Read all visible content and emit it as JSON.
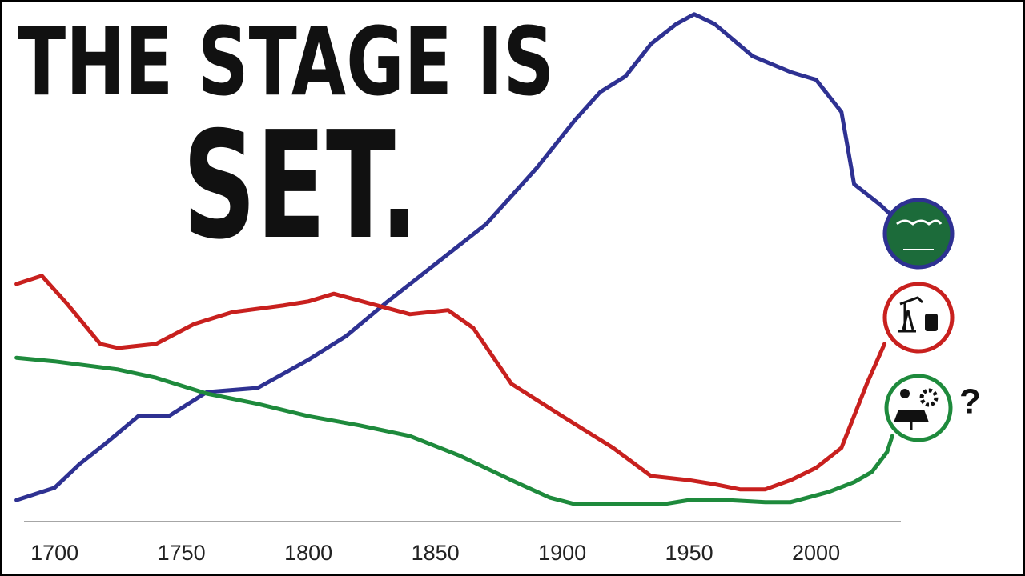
{
  "chart_data": {
    "type": "line",
    "title": [
      "THE STAGE IS",
      "SET."
    ],
    "annotation": "?",
    "xlim": [
      1685,
      2035
    ],
    "xticks": [
      1700,
      1750,
      1800,
      1850,
      1900,
      1950,
      2000
    ],
    "ylim": [
      0,
      100
    ],
    "series": [
      {
        "color": "#2e3192",
        "x": [
          1685,
          1700,
          1710,
          1720,
          1733,
          1745,
          1760,
          1780,
          1800,
          1815,
          1830,
          1850,
          1870,
          1890,
          1905,
          1915,
          1925,
          1935,
          1945,
          1952,
          1960,
          1975,
          1990,
          2000,
          2010,
          2015,
          2025,
          2030
        ],
        "values": [
          4.2,
          6.6,
          11.3,
          15.2,
          20.6,
          20.6,
          25.3,
          26.1,
          31.6,
          36.3,
          42.5,
          50.3,
          58.1,
          69.1,
          78.4,
          83.9,
          87.0,
          93.3,
          97.2,
          99.1,
          97.2,
          90.9,
          87.8,
          86.3,
          80,
          65.9,
          62,
          59.7
        ]
      },
      {
        "color": "#c8201e",
        "x": [
          1685,
          1695,
          1705,
          1718,
          1725,
          1740,
          1755,
          1770,
          1790,
          1800,
          1810,
          1825,
          1840,
          1855,
          1865,
          1880,
          1900,
          1920,
          1935,
          1950,
          1960,
          1970,
          1980,
          1990,
          2000,
          2010,
          2020,
          2027
        ],
        "values": [
          46.4,
          48.0,
          42.5,
          34.7,
          33.9,
          34.7,
          38.6,
          40.9,
          42.2,
          43.0,
          44.5,
          42.5,
          40.5,
          41.3,
          37.8,
          26.9,
          20.6,
          14.4,
          8.9,
          8.1,
          7.3,
          6.3,
          6.3,
          8.1,
          10.5,
          14.4,
          26.9,
          34.7
        ]
      },
      {
        "color": "#1e8a3c",
        "x": [
          1685,
          1700,
          1725,
          1740,
          1760,
          1780,
          1800,
          1820,
          1840,
          1860,
          1880,
          1895,
          1905,
          1940,
          1950,
          1965,
          1980,
          1990,
          2005,
          2015,
          2022,
          2028,
          2030
        ],
        "values": [
          32.0,
          31.3,
          29.7,
          28.1,
          25,
          23,
          20.6,
          18.8,
          16.7,
          12.8,
          8.1,
          4.7,
          3.4,
          3.4,
          4.2,
          4.2,
          3.8,
          3.8,
          5.8,
          7.7,
          9.7,
          13.6,
          16.7
        ]
      }
    ]
  }
}
